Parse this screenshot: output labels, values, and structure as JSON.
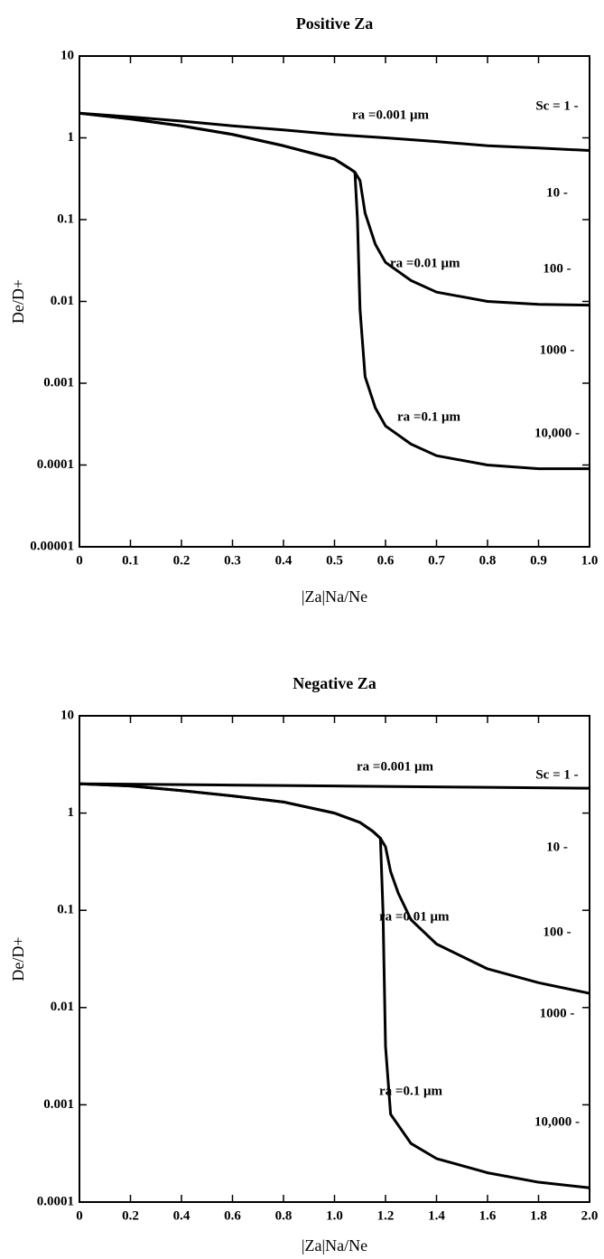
{
  "chart_data": [
    {
      "type": "line",
      "title": "Positive Za",
      "xlabel": "|Za|Na/Ne",
      "ylabel": "De/D+",
      "ylog": true,
      "color": "#000000",
      "xlim": [
        0,
        1.0
      ],
      "xticks": [
        0,
        0.1,
        0.2,
        0.3,
        0.4,
        0.5,
        0.6,
        0.7,
        0.8,
        0.9,
        {
          "value": 1.0,
          "label": "1.0"
        }
      ],
      "ylim": [
        1e-05,
        10
      ],
      "yticks": [
        1e-05,
        0.0001,
        0.001,
        0.01,
        0.1,
        1,
        10
      ],
      "series": [
        {
          "name": "ra =0.001 μm",
          "color": "#000000",
          "x": [
            0,
            0.1,
            0.2,
            0.3,
            0.4,
            0.5,
            0.6,
            0.7,
            0.8,
            0.9,
            1.0
          ],
          "values": [
            2,
            1.8,
            1.6,
            1.4,
            1.25,
            1.1,
            1.0,
            0.9,
            0.8,
            0.75,
            0.7
          ]
        },
        {
          "name": "ra =0.01 μm",
          "color": "#000000",
          "x": [
            0,
            0.1,
            0.2,
            0.3,
            0.4,
            0.5,
            0.53,
            0.54,
            0.55,
            0.56,
            0.58,
            0.6,
            0.65,
            0.7,
            0.8,
            0.9,
            1.0
          ],
          "values": [
            2,
            1.7,
            1.4,
            1.1,
            0.8,
            0.55,
            0.42,
            0.38,
            0.3,
            0.12,
            0.05,
            0.03,
            0.018,
            0.013,
            0.01,
            0.0092,
            0.009
          ]
        },
        {
          "name": "ra =0.1 μm",
          "color": "#000000",
          "x": [
            0,
            0.1,
            0.2,
            0.3,
            0.4,
            0.5,
            0.53,
            0.54,
            0.545,
            0.55,
            0.56,
            0.58,
            0.6,
            0.65,
            0.7,
            0.8,
            0.9,
            1.0
          ],
          "values": [
            2,
            1.7,
            1.4,
            1.1,
            0.8,
            0.55,
            0.42,
            0.38,
            0.1,
            0.008,
            0.0012,
            0.0005,
            0.0003,
            0.00018,
            0.00013,
            0.0001,
            9e-05,
            9e-05
          ]
        }
      ],
      "annotations": [
        "Sc = 1 -",
        "10 -",
        "100 -",
        "1000 -",
        "10,000 -"
      ]
    },
    {
      "type": "line",
      "title": "Negative Za",
      "xlabel": "|Za|Na/Ne",
      "ylabel": "De/D+",
      "ylog": true,
      "color": "#000000",
      "xlim": [
        0,
        2.0
      ],
      "xticks": [
        0,
        0.2,
        0.4,
        0.6,
        0.8,
        {
          "value": 1.0,
          "label": "1.0"
        },
        1.2,
        1.4,
        1.6,
        1.8,
        {
          "value": 2.0,
          "label": "2.0"
        }
      ],
      "ylim": [
        0.0001,
        10
      ],
      "yticks": [
        0.0001,
        0.001,
        0.01,
        0.1,
        1,
        10
      ],
      "series": [
        {
          "name": "ra =0.001 μm",
          "color": "#000000",
          "x": [
            0,
            0.5,
            1.0,
            1.5,
            2.0
          ],
          "values": [
            2,
            1.95,
            1.9,
            1.85,
            1.8
          ]
        },
        {
          "name": "ra =0.01 μm",
          "color": "#000000",
          "x": [
            0,
            0.2,
            0.4,
            0.6,
            0.8,
            1.0,
            1.1,
            1.15,
            1.18,
            1.2,
            1.22,
            1.25,
            1.3,
            1.4,
            1.6,
            1.8,
            2.0
          ],
          "values": [
            2,
            1.9,
            1.7,
            1.5,
            1.3,
            1.0,
            0.8,
            0.65,
            0.55,
            0.45,
            0.25,
            0.15,
            0.08,
            0.045,
            0.025,
            0.018,
            0.014
          ]
        },
        {
          "name": "ra =0.1 μm",
          "color": "#000000",
          "x": [
            0,
            0.2,
            0.4,
            0.6,
            0.8,
            1.0,
            1.1,
            1.15,
            1.18,
            1.19,
            1.2,
            1.22,
            1.3,
            1.4,
            1.6,
            1.8,
            2.0
          ],
          "values": [
            2,
            1.9,
            1.7,
            1.5,
            1.3,
            1.0,
            0.8,
            0.65,
            0.55,
            0.1,
            0.004,
            0.0008,
            0.0004,
            0.00028,
            0.0002,
            0.00016,
            0.00014
          ]
        }
      ],
      "annotations": [
        "Sc = 1 -",
        "10 -",
        "100 -",
        "1000 -",
        "10,000 -"
      ]
    }
  ]
}
